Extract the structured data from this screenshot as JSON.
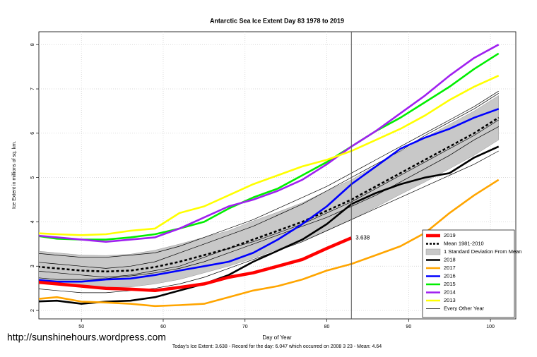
{
  "chart_data": {
    "type": "line",
    "title": "Antarctic Sea Ice Extent Day 83 1978 to 2019",
    "xlabel": "Day of Year",
    "ylabel": "Ice Extent in millions of sq. km.",
    "footer": "Today's Ice Extent: 3.638 - Record for the day: 6.047 which occurred on 2008 3 23 - Mean: 4.64",
    "watermark": "http://sunshinehours.wordpress.com",
    "xlim": [
      44.8,
      103.1
    ],
    "ylim": [
      1.81,
      8.29
    ],
    "xticks": [
      50,
      60,
      70,
      80,
      90,
      100
    ],
    "yticks": [
      2,
      3,
      4,
      5,
      6,
      7,
      8
    ],
    "grid": true,
    "legend": "lower right",
    "vline": 83,
    "x": [
      44,
      47,
      50,
      53,
      56,
      59,
      62,
      65,
      68,
      71,
      74,
      77,
      80,
      83,
      86,
      89,
      92,
      95,
      98,
      101
    ],
    "series": [
      {
        "name": "2019",
        "color": "#ff0000",
        "style": "thick",
        "values": [
          2.65,
          2.6,
          2.55,
          2.5,
          2.48,
          2.45,
          2.52,
          2.6,
          2.75,
          2.85,
          3.0,
          3.15,
          3.4,
          3.638,
          null,
          null,
          null,
          null,
          null,
          null
        ]
      },
      {
        "name": "Mean 1981-2010",
        "color": "#000000",
        "style": "dashed",
        "values": [
          3.0,
          2.95,
          2.9,
          2.88,
          2.9,
          2.98,
          3.1,
          3.25,
          3.4,
          3.6,
          3.8,
          4.0,
          4.25,
          4.5,
          4.8,
          5.1,
          5.4,
          5.7,
          6.0,
          6.35
        ]
      },
      {
        "name": "1 Standard Deviation From Mean",
        "color": "#c8c8c8",
        "style": "band",
        "lower": [
          2.65,
          2.6,
          2.55,
          2.52,
          2.53,
          2.6,
          2.7,
          2.85,
          3.0,
          3.18,
          3.38,
          3.57,
          3.8,
          4.05,
          4.33,
          4.62,
          4.9,
          5.2,
          5.5,
          5.85
        ],
        "upper": [
          3.35,
          3.3,
          3.25,
          3.24,
          3.27,
          3.36,
          3.5,
          3.65,
          3.8,
          4.02,
          4.22,
          4.43,
          4.7,
          4.95,
          5.27,
          5.58,
          5.9,
          6.2,
          6.5,
          6.85
        ]
      },
      {
        "name": "2018",
        "color": "#000000",
        "style": "line",
        "values": [
          2.2,
          2.22,
          2.15,
          2.2,
          2.22,
          2.3,
          2.45,
          2.6,
          2.8,
          3.1,
          3.35,
          3.6,
          3.95,
          4.4,
          4.65,
          4.85,
          5.0,
          5.1,
          5.45,
          5.7
        ]
      },
      {
        "name": "2017",
        "color": "#ffa500",
        "style": "line",
        "values": [
          2.25,
          2.3,
          2.2,
          2.18,
          2.15,
          2.1,
          2.12,
          2.15,
          2.3,
          2.45,
          2.55,
          2.7,
          2.9,
          3.05,
          3.25,
          3.45,
          3.75,
          4.2,
          4.6,
          4.95
        ]
      },
      {
        "name": "2016",
        "color": "#0000ff",
        "style": "line",
        "values": [
          2.7,
          2.65,
          2.65,
          2.7,
          2.72,
          2.8,
          2.9,
          3.0,
          3.1,
          3.3,
          3.6,
          3.95,
          4.35,
          4.85,
          5.25,
          5.65,
          5.9,
          6.1,
          6.35,
          6.55
        ]
      },
      {
        "name": "2015",
        "color": "#00ee00",
        "style": "line",
        "values": [
          3.7,
          3.62,
          3.6,
          3.6,
          3.65,
          3.72,
          3.85,
          4.0,
          4.3,
          4.55,
          4.75,
          5.05,
          5.35,
          5.7,
          6.05,
          6.35,
          6.7,
          7.05,
          7.45,
          7.8
        ]
      },
      {
        "name": "2014",
        "color": "#a020f0",
        "style": "line",
        "values": [
          3.7,
          3.65,
          3.6,
          3.55,
          3.6,
          3.65,
          3.85,
          4.1,
          4.35,
          4.5,
          4.7,
          4.95,
          5.3,
          5.7,
          6.05,
          6.45,
          6.85,
          7.3,
          7.7,
          8.0
        ]
      },
      {
        "name": "2013",
        "color": "#ffff00",
        "style": "line",
        "values": [
          3.75,
          3.72,
          3.7,
          3.72,
          3.8,
          3.85,
          4.2,
          4.35,
          4.6,
          4.85,
          5.05,
          5.25,
          5.4,
          5.6,
          5.85,
          6.1,
          6.4,
          6.75,
          7.05,
          7.3
        ]
      },
      {
        "name": "Every Other Year",
        "color": "#000000",
        "style": "thin",
        "lines": [
          [
            2.9,
            2.85,
            2.8,
            2.75,
            2.8,
            2.9,
            3.0,
            3.2,
            3.4,
            3.55,
            3.75,
            3.95,
            4.2,
            4.45,
            4.75,
            5.05,
            5.35,
            5.65,
            5.95,
            6.3
          ],
          [
            3.3,
            3.25,
            3.2,
            3.2,
            3.25,
            3.3,
            3.45,
            3.65,
            3.85,
            4.05,
            4.3,
            4.55,
            4.8,
            5.1,
            5.4,
            5.7,
            6.0,
            6.3,
            6.6,
            6.95
          ],
          [
            2.5,
            2.45,
            2.4,
            2.4,
            2.45,
            2.5,
            2.6,
            2.75,
            2.95,
            3.15,
            3.35,
            3.55,
            3.8,
            4.05,
            4.3,
            4.55,
            4.8,
            5.05,
            5.3,
            5.6
          ],
          [
            3.1,
            3.05,
            3.0,
            2.95,
            3.0,
            3.1,
            3.3,
            3.5,
            3.7,
            3.9,
            4.15,
            4.4,
            4.7,
            5.0,
            5.3,
            5.6,
            5.95,
            6.25,
            6.55,
            6.9
          ],
          [
            2.75,
            2.7,
            2.7,
            2.72,
            2.78,
            2.85,
            2.95,
            3.1,
            3.3,
            3.5,
            3.7,
            3.9,
            4.1,
            4.35,
            4.6,
            4.9,
            5.2,
            5.5,
            5.85,
            6.15
          ]
        ]
      }
    ]
  }
}
